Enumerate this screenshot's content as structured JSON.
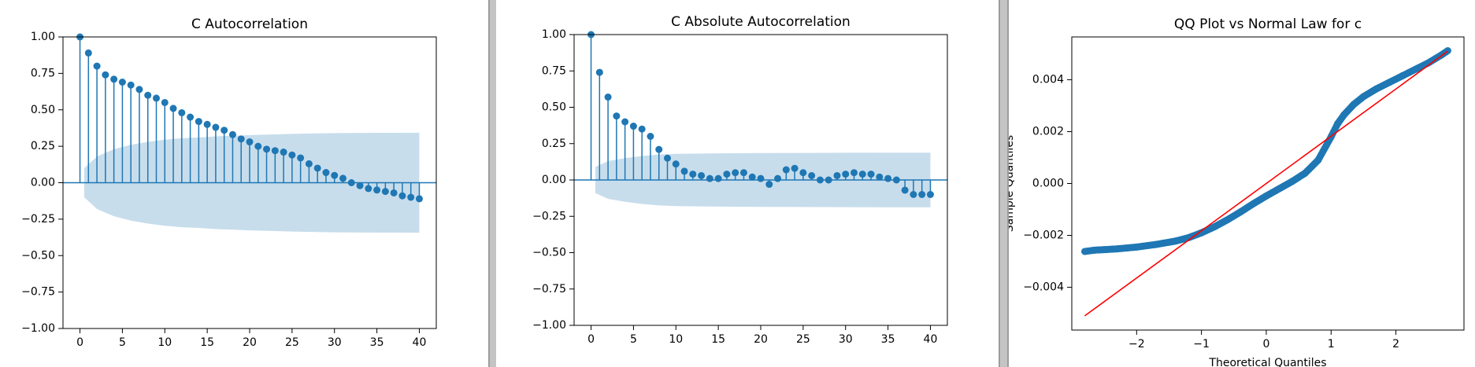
{
  "colors": {
    "marker": "#1f77b4",
    "confidence_band": "#1f77b4",
    "reference_line": "#ff0000",
    "axis": "#000000",
    "background": "#ffffff"
  },
  "chart_data": [
    {
      "type": "scatter",
      "title": "C Autocorrelation",
      "xlabel": "",
      "ylabel": "",
      "xlim": [
        -2,
        42
      ],
      "ylim": [
        -1,
        1
      ],
      "xticks": [
        0,
        5,
        10,
        15,
        20,
        25,
        30,
        35,
        40
      ],
      "yticks": [
        -1,
        -0.75,
        -0.5,
        -0.25,
        0,
        0.25,
        0.5,
        0.75,
        1
      ],
      "ytick_labels": [
        "−1.00",
        "−0.75",
        "−0.50",
        "−0.25",
        "0.00",
        "0.25",
        "0.50",
        "0.75",
        "1.00"
      ],
      "grid": false,
      "legend": "none",
      "style": "stem",
      "x": [
        0,
        1,
        2,
        3,
        4,
        5,
        6,
        7,
        8,
        9,
        10,
        11,
        12,
        13,
        14,
        15,
        16,
        17,
        18,
        19,
        20,
        21,
        22,
        23,
        24,
        25,
        26,
        27,
        28,
        29,
        30,
        31,
        32,
        33,
        34,
        35,
        36,
        37,
        38,
        39,
        40
      ],
      "values": [
        1.0,
        0.89,
        0.8,
        0.74,
        0.71,
        0.69,
        0.67,
        0.64,
        0.6,
        0.58,
        0.55,
        0.51,
        0.48,
        0.45,
        0.42,
        0.4,
        0.38,
        0.36,
        0.33,
        0.3,
        0.28,
        0.25,
        0.23,
        0.22,
        0.21,
        0.19,
        0.17,
        0.13,
        0.1,
        0.07,
        0.05,
        0.03,
        0.0,
        -0.02,
        -0.04,
        -0.05,
        -0.06,
        -0.07,
        -0.09,
        -0.1,
        -0.11
      ],
      "confidence_band": {
        "x": [
          0.5,
          2,
          4,
          6,
          8,
          10,
          12,
          14,
          16,
          18,
          20,
          25,
          30,
          35,
          40
        ],
        "upper": [
          0.1,
          0.18,
          0.23,
          0.26,
          0.28,
          0.295,
          0.305,
          0.31,
          0.318,
          0.322,
          0.327,
          0.335,
          0.34,
          0.342,
          0.343
        ],
        "lower": [
          -0.1,
          -0.18,
          -0.23,
          -0.26,
          -0.28,
          -0.295,
          -0.305,
          -0.31,
          -0.318,
          -0.322,
          -0.327,
          -0.335,
          -0.34,
          -0.342,
          -0.343
        ]
      }
    },
    {
      "type": "scatter",
      "title": "C Absolute Autocorrelation",
      "xlabel": "",
      "ylabel": "",
      "xlim": [
        -2,
        42
      ],
      "ylim": [
        -1,
        1
      ],
      "xticks": [
        0,
        5,
        10,
        15,
        20,
        25,
        30,
        35,
        40
      ],
      "yticks": [
        -1,
        -0.75,
        -0.5,
        -0.25,
        0,
        0.25,
        0.5,
        0.75,
        1
      ],
      "ytick_labels": [
        "−1.00",
        "−0.75",
        "−0.50",
        "−0.25",
        "0.00",
        "0.25",
        "0.50",
        "0.75",
        "1.00"
      ],
      "grid": false,
      "legend": "none",
      "style": "stem",
      "x": [
        0,
        1,
        2,
        3,
        4,
        5,
        6,
        7,
        8,
        9,
        10,
        11,
        12,
        13,
        14,
        15,
        16,
        17,
        18,
        19,
        20,
        21,
        22,
        23,
        24,
        25,
        26,
        27,
        28,
        29,
        30,
        31,
        32,
        33,
        34,
        35,
        36,
        37,
        38,
        39,
        40
      ],
      "values": [
        1.0,
        0.74,
        0.57,
        0.44,
        0.4,
        0.37,
        0.35,
        0.3,
        0.21,
        0.15,
        0.11,
        0.06,
        0.04,
        0.03,
        0.01,
        0.01,
        0.04,
        0.05,
        0.05,
        0.02,
        0.01,
        -0.03,
        0.01,
        0.07,
        0.08,
        0.05,
        0.03,
        0.0,
        0.0,
        0.03,
        0.04,
        0.05,
        0.04,
        0.04,
        0.02,
        0.01,
        0.0,
        -0.07,
        -0.1,
        -0.1,
        -0.1
      ],
      "confidence_band": {
        "x": [
          0.5,
          2,
          4,
          6,
          8,
          10,
          15,
          20,
          25,
          30,
          35,
          40
        ],
        "upper": [
          0.09,
          0.13,
          0.15,
          0.165,
          0.175,
          0.18,
          0.183,
          0.185,
          0.186,
          0.187,
          0.188,
          0.188
        ],
        "lower": [
          -0.09,
          -0.13,
          -0.15,
          -0.165,
          -0.175,
          -0.18,
          -0.183,
          -0.185,
          -0.186,
          -0.187,
          -0.188,
          -0.188
        ]
      }
    },
    {
      "type": "scatter",
      "title": "QQ Plot vs Normal Law for c",
      "xlabel": "Theoretical Quantiles",
      "ylabel": "Sample Quantiles",
      "xlim": [
        -3.0,
        3.05
      ],
      "ylim": [
        -0.00565,
        0.00565
      ],
      "xticks": [
        -2,
        -1,
        0,
        1,
        2
      ],
      "xtick_labels": [
        "−2",
        "−1",
        "0",
        "1",
        "2"
      ],
      "yticks": [
        -0.004,
        -0.002,
        0,
        0.002,
        0.004
      ],
      "ytick_labels": [
        "−0.004",
        "−0.002",
        "0.000",
        "0.002",
        "0.004"
      ],
      "grid": false,
      "legend": "none",
      "curve": {
        "x": [
          -2.8,
          -2.65,
          -2.5,
          -2.3,
          -2.0,
          -1.7,
          -1.4,
          -1.2,
          -1.0,
          -0.8,
          -0.6,
          -0.4,
          -0.2,
          0.0,
          0.2,
          0.4,
          0.6,
          0.8,
          1.0,
          1.1,
          1.2,
          1.35,
          1.5,
          1.7,
          1.9,
          2.1,
          2.3,
          2.5,
          2.7,
          2.8
        ],
        "y": [
          -0.00262,
          -0.00257,
          -0.00255,
          -0.00252,
          -0.00245,
          -0.00235,
          -0.00222,
          -0.00209,
          -0.0019,
          -0.00167,
          -0.0014,
          -0.0011,
          -0.00078,
          -0.00048,
          -0.0002,
          8e-05,
          0.0004,
          0.0009,
          0.0018,
          0.0023,
          0.00265,
          0.00305,
          0.00335,
          0.00365,
          0.0039,
          0.00415,
          0.0044,
          0.00465,
          0.00495,
          0.00512
        ]
      },
      "reference_line": {
        "x": [
          -2.8,
          2.8
        ],
        "y": [
          -0.0051,
          0.0051
        ]
      }
    }
  ]
}
